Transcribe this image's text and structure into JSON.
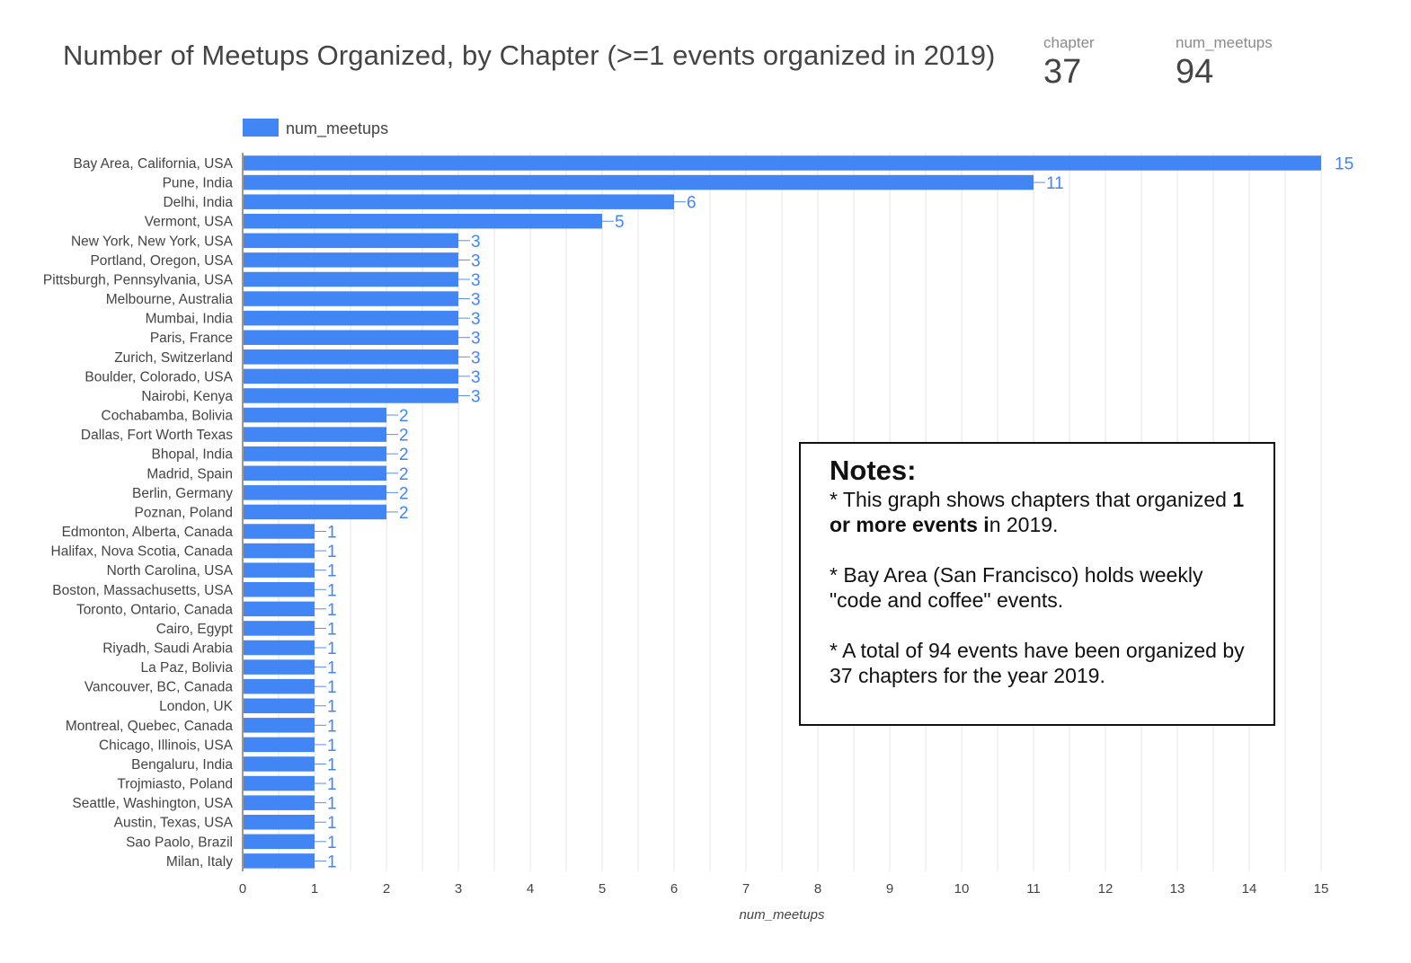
{
  "header": {
    "title": "Number of Meetups Organized, by Chapter (>=1 events organized in 2019)"
  },
  "scorecards": [
    {
      "label": "chapter",
      "value": "37"
    },
    {
      "label": "num_meetups",
      "value": "94"
    }
  ],
  "notes": {
    "title": "Notes:",
    "p1_pre": "* This graph shows chapters that organized ",
    "p1_bold": "1 or more events i",
    "p1_post": "n 2019.",
    "p2": "* Bay Area (San Francisco) holds weekly \"code and coffee\" events.",
    "p3": "* A total of 94 events have been organized by 37 chapters for the year 2019."
  },
  "colors": {
    "bar": "#4285f4",
    "label": "#4285f4",
    "grid": "#e6e6e6",
    "text": "#444444"
  },
  "chart_data": {
    "type": "bar",
    "orientation": "horizontal",
    "legend": {
      "position": "top-left",
      "entries": [
        "num_meetups"
      ]
    },
    "xlabel": "num_meetups",
    "ylabel": "",
    "xlim": [
      0,
      15
    ],
    "xticks": [
      0,
      1,
      2,
      3,
      4,
      5,
      6,
      7,
      8,
      9,
      10,
      11,
      12,
      13,
      14,
      15
    ],
    "grid": true,
    "categories": [
      "Bay Area, California, USA",
      "Pune, India",
      "Delhi, India",
      "Vermont, USA",
      "New York, New York, USA",
      "Portland, Oregon, USA",
      "Pittsburgh, Pennsylvania, USA",
      "Melbourne, Australia",
      "Mumbai, India",
      "Paris, France",
      "Zurich, Switzerland",
      "Boulder, Colorado, USA",
      "Nairobi, Kenya",
      "Cochabamba, Bolivia",
      "Dallas, Fort Worth Texas",
      "Bhopal, India",
      "Madrid, Spain",
      "Berlin, Germany",
      "Poznan, Poland",
      "Edmonton, Alberta, Canada",
      "Halifax, Nova Scotia, Canada",
      "North Carolina, USA",
      "Boston, Massachusetts, USA",
      "Toronto, Ontario, Canada",
      "Cairo, Egypt",
      "Riyadh, Saudi Arabia",
      "La Paz, Bolivia",
      "Vancouver, BC, Canada",
      "London, UK",
      "Montreal, Quebec, Canada",
      "Chicago, Illinois, USA",
      "Bengaluru, India",
      "Trojmiasto, Poland",
      "Seattle, Washington, USA",
      "Austin, Texas, USA",
      "Sao Paolo, Brazil",
      "Milan, Italy"
    ],
    "series": [
      {
        "name": "num_meetups",
        "values": [
          15,
          11,
          6,
          5,
          3,
          3,
          3,
          3,
          3,
          3,
          3,
          3,
          3,
          2,
          2,
          2,
          2,
          2,
          2,
          1,
          1,
          1,
          1,
          1,
          1,
          1,
          1,
          1,
          1,
          1,
          1,
          1,
          1,
          1,
          1,
          1,
          1
        ]
      }
    ]
  }
}
